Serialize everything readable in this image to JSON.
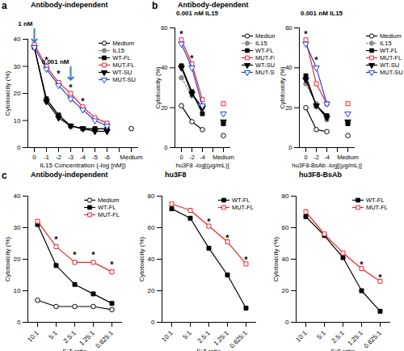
{
  "chart_data": [
    {
      "type": "line",
      "panel": "a",
      "title": "Antibody-independent",
      "x_label": "IL15 Concentration (-log [nM])",
      "y_label": "Cytotoxicity (%)",
      "categories": [
        "0",
        "-1",
        "-2",
        "-3",
        "-4",
        "-5",
        "-6",
        null,
        "Medium"
      ],
      "ylim": [
        0,
        40
      ],
      "yticks": [
        0,
        10,
        20,
        30,
        40
      ],
      "grid": false,
      "legend": "top-right",
      "series": [
        {
          "name": "Medium",
          "color": "#000000",
          "marker": "circle-open",
          "line_style": "solid",
          "values": [
            null,
            null,
            null,
            null,
            null,
            null,
            null,
            null,
            7
          ]
        },
        {
          "name": "IL15",
          "color": "#8c8c8c",
          "marker": "circle",
          "line_style": "solid",
          "values": [
            37,
            17,
            12,
            8,
            7,
            7,
            7,
            null,
            null
          ]
        },
        {
          "name": "WT-FL",
          "color": "#000000",
          "marker": "square",
          "line_style": "solid",
          "values": [
            37,
            18,
            12,
            8,
            7,
            7,
            7,
            null,
            null
          ]
        },
        {
          "name": "MUT-FL",
          "color": "#e8262d",
          "marker": "square-open",
          "line_style": "solid",
          "values": [
            38,
            30,
            24,
            20,
            15,
            11,
            9,
            null,
            null
          ]
        },
        {
          "name": "WT-SU",
          "color": "#000000",
          "marker": "triangle-down",
          "line_style": "solid",
          "values": [
            37,
            17,
            11,
            8,
            7,
            6,
            6,
            null,
            null
          ]
        },
        {
          "name": "MUT-SU",
          "color": "#2a3fd8",
          "marker": "triangle-down-open",
          "line_style": "solid",
          "values": [
            37,
            29,
            23,
            18,
            14,
            10,
            8,
            null,
            null
          ]
        }
      ],
      "annotations": [
        {
          "x": "0",
          "y": 39,
          "text": "1 nM",
          "marker": "arrow"
        },
        {
          "x": "-3",
          "y": 25,
          "text": "0.001 nM",
          "marker": "arrow"
        },
        {
          "x": "-1",
          "y": 33,
          "text": "*"
        },
        {
          "x": "-2",
          "y": 28,
          "text": "*"
        },
        {
          "x": "-3",
          "y": 23,
          "text": "*"
        },
        {
          "x": "-4",
          "y": 18,
          "text": "*"
        }
      ]
    },
    {
      "type": "line",
      "panel": "b",
      "title": "Antibody-dependent",
      "subtitle": "0.001 nM IL15",
      "x_label": "hu3F8 -log[(μg/mL)]",
      "y_label": "Cytotoxicity (%)",
      "categories": [
        "0",
        "-2",
        "-4",
        null,
        "Medium"
      ],
      "ylim": [
        0,
        60
      ],
      "yticks": [
        0,
        20,
        40,
        60
      ],
      "grid": false,
      "legend": "right",
      "series": [
        {
          "name": "Medium",
          "color": "#000000",
          "marker": "circle-open",
          "line_style": "solid",
          "values": [
            21,
            13,
            9,
            null,
            6
          ]
        },
        {
          "name": "IL15",
          "color": "#8c8c8c",
          "marker": "circle",
          "line_style": "dashed",
          "values": [
            35,
            26,
            20,
            null,
            12
          ]
        },
        {
          "name": "WT-FL",
          "color": "#000000",
          "marker": "square",
          "line_style": "solid",
          "values": [
            41,
            28,
            17,
            null,
            12
          ]
        },
        {
          "name": "MUT-FL",
          "color": "#e8262d",
          "marker": "square-open",
          "line_style": "solid",
          "values": [
            54,
            42,
            24,
            null,
            22
          ]
        },
        {
          "name": "WT-SU",
          "color": "#000000",
          "marker": "triangle-down",
          "line_style": "solid",
          "values": [
            40,
            27,
            20,
            null,
            13
          ]
        },
        {
          "name": "MUT-SU",
          "color": "#2a3fd8",
          "marker": "triangle-down-open",
          "line_style": "solid",
          "values": [
            52,
            40,
            21,
            null,
            17
          ]
        }
      ],
      "annotations": [
        {
          "x": "0",
          "y": 58,
          "text": "*"
        },
        {
          "x": "-2",
          "y": 46,
          "text": "*"
        }
      ]
    },
    {
      "type": "line",
      "subtitle": "0.001 nM IL15",
      "x_label": "hu3F8-BsAb -log[(μg/mL)]",
      "y_label": "Cytotoxicity (%)",
      "categories": [
        "0",
        "-2",
        "-4",
        null,
        "Medium"
      ],
      "ylim": [
        0,
        60
      ],
      "yticks": [
        0,
        20,
        40,
        60
      ],
      "grid": false,
      "legend": "right",
      "series": [
        {
          "name": "Medium",
          "color": "#000000",
          "marker": "circle-open",
          "line_style": "solid",
          "values": [
            20,
            9,
            8,
            null,
            6
          ]
        },
        {
          "name": "IL15",
          "color": "#8c8c8c",
          "marker": "circle",
          "line_style": "dashed",
          "values": [
            32,
            22,
            14,
            null,
            12
          ]
        },
        {
          "name": "WT-FL",
          "color": "#000000",
          "marker": "square",
          "line_style": "solid",
          "values": [
            36,
            21,
            16,
            null,
            12
          ]
        },
        {
          "name": "MUT-FL",
          "color": "#e8262d",
          "marker": "square-open",
          "line_style": "solid",
          "values": [
            54,
            32,
            22,
            null,
            22
          ]
        },
        {
          "name": "WT-SU",
          "color": "#000000",
          "marker": "triangle-down",
          "line_style": "solid",
          "values": [
            34,
            21,
            15,
            null,
            13
          ]
        },
        {
          "name": "MUT-SU",
          "color": "#2a3fd8",
          "marker": "triangle-down-open",
          "line_style": "solid",
          "values": [
            52,
            40,
            22,
            null,
            17
          ]
        }
      ],
      "annotations": [
        {
          "x": "0",
          "y": 58,
          "text": "*"
        },
        {
          "x": "-2",
          "y": 45,
          "text": "*"
        }
      ]
    },
    {
      "type": "line",
      "panel": "c",
      "title": "Antibody-independent",
      "x_label": "E:T ratio",
      "y_label": "Cytotoxicity (%)",
      "categories": [
        "10:1",
        "5:1",
        "2.5:1",
        "1.25:1",
        "0.625:1"
      ],
      "ylim": [
        0,
        40
      ],
      "yticks": [
        0,
        10,
        20,
        30,
        40
      ],
      "grid": false,
      "legend": "top-right",
      "series": [
        {
          "name": "Medium",
          "color": "#000000",
          "marker": "circle-open",
          "line_style": "solid",
          "values": [
            7,
            5,
            5,
            5,
            4
          ]
        },
        {
          "name": "WT-FL",
          "color": "#000000",
          "marker": "square",
          "line_style": "solid",
          "values": [
            31,
            18,
            12,
            9,
            6
          ]
        },
        {
          "name": "MUT-FL",
          "color": "#e8262d",
          "marker": "square-open",
          "line_style": "solid",
          "values": [
            32,
            24,
            19,
            19,
            16
          ]
        }
      ],
      "annotations": [
        {
          "x": "5:1",
          "y": 27,
          "text": "*"
        },
        {
          "x": "2.5:1",
          "y": 22,
          "text": "*"
        },
        {
          "x": "1.25:1",
          "y": 22,
          "text": "*"
        },
        {
          "x": "0.625:1",
          "y": 19,
          "text": "*"
        }
      ]
    },
    {
      "type": "line",
      "title": "hu3F8",
      "x_label": "E:T ratio",
      "y_label": "Cytotoxicity (%)",
      "categories": [
        "10:1",
        "5:1",
        "2.5:1",
        "1.25:1",
        "0.625:1"
      ],
      "ylim": [
        0,
        80
      ],
      "yticks": [
        0,
        20,
        40,
        60,
        80
      ],
      "grid": false,
      "legend": "top-right",
      "series": [
        {
          "name": "WT-FL",
          "color": "#000000",
          "marker": "square",
          "line_style": "solid",
          "values": [
            72,
            66,
            47,
            30,
            9
          ]
        },
        {
          "name": "MUT-FL",
          "color": "#e8262d",
          "marker": "square-open",
          "line_style": "solid",
          "values": [
            75,
            71,
            61,
            51,
            37
          ]
        }
      ],
      "annotations": [
        {
          "x": "2.5:1",
          "y": 65,
          "text": "*"
        },
        {
          "x": "1.25:1",
          "y": 55,
          "text": "*"
        },
        {
          "x": "0.625:1",
          "y": 41,
          "text": "*"
        }
      ]
    },
    {
      "type": "line",
      "title": "hu3F8-BsAb",
      "x_label": "E:T ratio",
      "y_label": "Cytotoxicity (%)",
      "categories": [
        "10:1",
        "5:1",
        "2.5:1",
        "1.25:1",
        "0.625:1"
      ],
      "ylim": [
        0,
        80
      ],
      "yticks": [
        0,
        20,
        40,
        60,
        80
      ],
      "grid": false,
      "legend": "top-right",
      "series": [
        {
          "name": "WT-FL",
          "color": "#000000",
          "marker": "square",
          "line_style": "solid",
          "values": [
            67,
            55,
            41,
            20,
            7
          ]
        },
        {
          "name": "MUT-FL",
          "color": "#e8262d",
          "marker": "square-open",
          "line_style": "solid",
          "values": [
            70,
            56,
            44,
            34,
            26
          ]
        }
      ],
      "annotations": [
        {
          "x": "1.25:1",
          "y": 38,
          "text": "*"
        },
        {
          "x": "0.625:1",
          "y": 30,
          "text": "*"
        }
      ]
    }
  ]
}
